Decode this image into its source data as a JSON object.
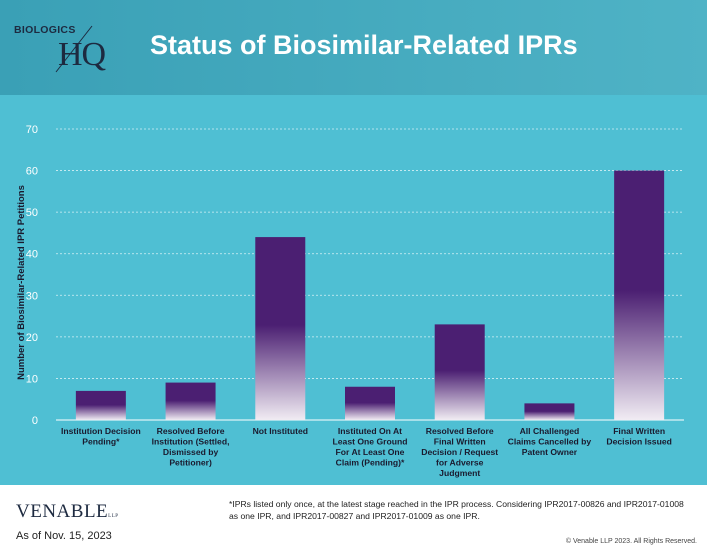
{
  "header": {
    "logo_top": "BIOLOGICS",
    "logo_hq": "HQ",
    "title": "Status of Biosimilar-Related IPRs"
  },
  "colors": {
    "header_bg": "#42a8bd",
    "plot_bg": "#4fbfd3",
    "bar_top": "#4b1f72",
    "bar_bottom": "#f1ecf3"
  },
  "chart_data": {
    "type": "bar",
    "title": "",
    "xlabel": "",
    "ylabel": "Number of Biosimilar-Related  IPR Petitions",
    "ylim": [
      0,
      70
    ],
    "yticks": [
      0,
      10,
      20,
      30,
      40,
      50,
      60,
      70
    ],
    "grid": true,
    "categories": [
      [
        "Institution Decision",
        "Pending*"
      ],
      [
        "Resolved Before",
        "Institution (Settled,",
        "Dismissed by",
        "Petitioner)"
      ],
      [
        "Not Instituted"
      ],
      [
        "Instituted On At",
        "Least One Ground",
        "For At Least One",
        "Claim (Pending)*"
      ],
      [
        "Resolved Before",
        "Final Written",
        "Decision / Request",
        "for Adverse",
        "Judgment"
      ],
      [
        "All Challenged",
        "Claims Cancelled by",
        "Patent Owner"
      ],
      [
        "Final Written",
        "Decision Issued"
      ]
    ],
    "values": [
      7,
      9,
      44,
      8,
      23,
      4,
      60
    ]
  },
  "footer": {
    "brand": "VENABLE",
    "brand_suffix": "LLP",
    "as_of": "As of Nov. 15, 2023",
    "note": "*IPRs listed only once, at the latest stage reached in the IPR process.  Considering IPR2017-00826 and IPR2017-01008 as one IPR, and IPR2017-00827 and IPR2017-01009 as one IPR.",
    "copyright": "© Venable LLP 2023. All Rights Reserved."
  }
}
